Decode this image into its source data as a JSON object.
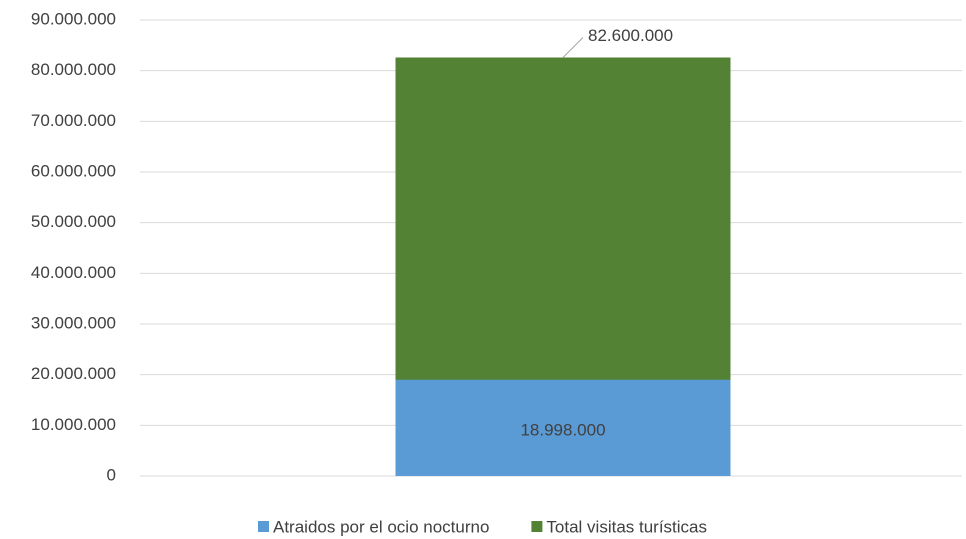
{
  "chart_data": {
    "type": "bar",
    "categories": [
      null
    ],
    "series": [
      {
        "name": "Atraidos por el ocio nocturno",
        "color": "#5b9bd5",
        "values": [
          18998000
        ],
        "value_labels": [
          "18.998.000"
        ]
      },
      {
        "name": "Total visitas turísticas",
        "color": "#548235",
        "values": [
          82600000
        ],
        "value_labels": [
          "82.600.000"
        ]
      }
    ],
    "ylim": [
      0,
      90000000
    ],
    "yticks": [
      0,
      {
        "value": 10000000,
        "label": "10.000.000"
      },
      {
        "value": 20000000,
        "label": "20.000.000"
      },
      {
        "value": 30000000,
        "label": "30.000.000"
      },
      {
        "value": 40000000,
        "label": "40.000.000"
      },
      {
        "value": 50000000,
        "label": "50.000.000"
      },
      {
        "value": 60000000,
        "label": "60.000.000"
      },
      {
        "value": 70000000,
        "label": "70.000.000"
      },
      {
        "value": 80000000,
        "label": "80.000.000"
      },
      {
        "value": 90000000,
        "label": "90.000.000"
      }
    ],
    "grid": true,
    "legend": "bottom"
  }
}
